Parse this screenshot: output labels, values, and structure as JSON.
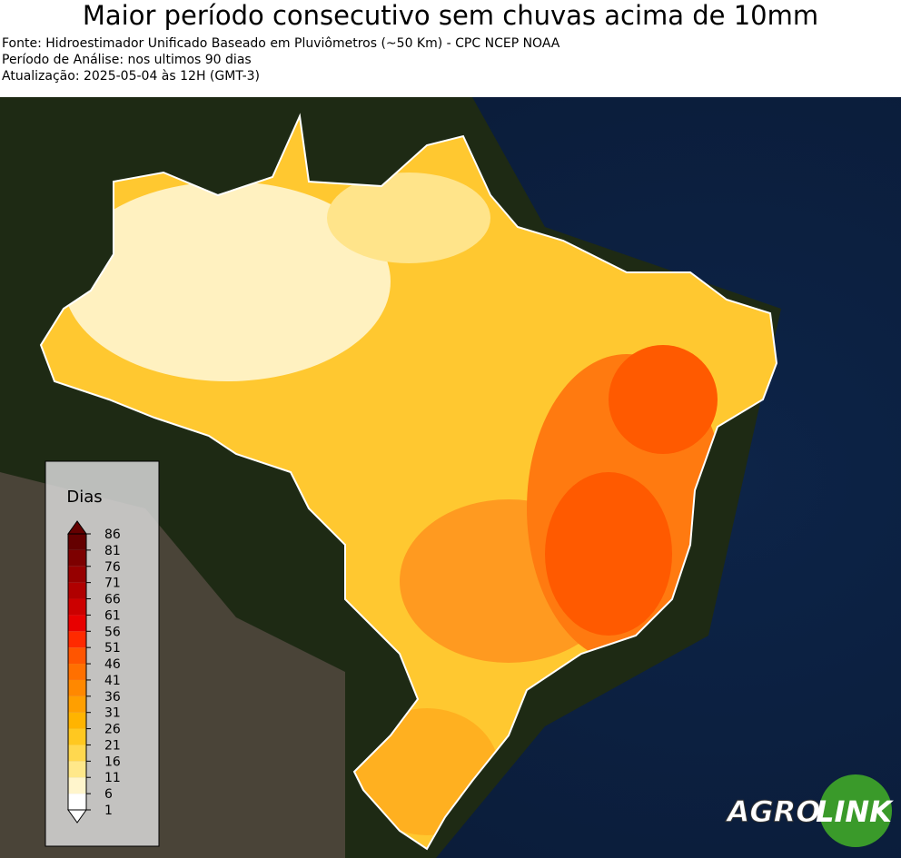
{
  "header": {
    "title": "Maior período consecutivo sem chuvas acima de 10mm",
    "lines": [
      "Fonte: Hidroestimador Unificado Baseado em Pluviômetros (~50 Km) - CPC NCEP NOAA",
      "Período de Análise: nos ultimos 90 dias",
      "Atualização: 2025-05-04 às 12H (GMT-3)"
    ]
  },
  "legend": {
    "title": "Dias",
    "ticks": [
      1,
      6,
      11,
      16,
      21,
      26,
      31,
      36,
      41,
      46,
      51,
      56,
      61,
      66,
      71,
      76,
      81,
      86
    ],
    "colors": [
      "#ffffff",
      "#fff5cc",
      "#ffe88a",
      "#ffd84f",
      "#ffc820",
      "#ffb400",
      "#ff9f00",
      "#ff8800",
      "#ff7000",
      "#ff5500",
      "#ff2a00",
      "#e80000",
      "#cc0000",
      "#b00000",
      "#960000",
      "#7d0000",
      "#640000"
    ]
  },
  "logo": {
    "text1": "AGRO",
    "text2": "LINK"
  }
}
